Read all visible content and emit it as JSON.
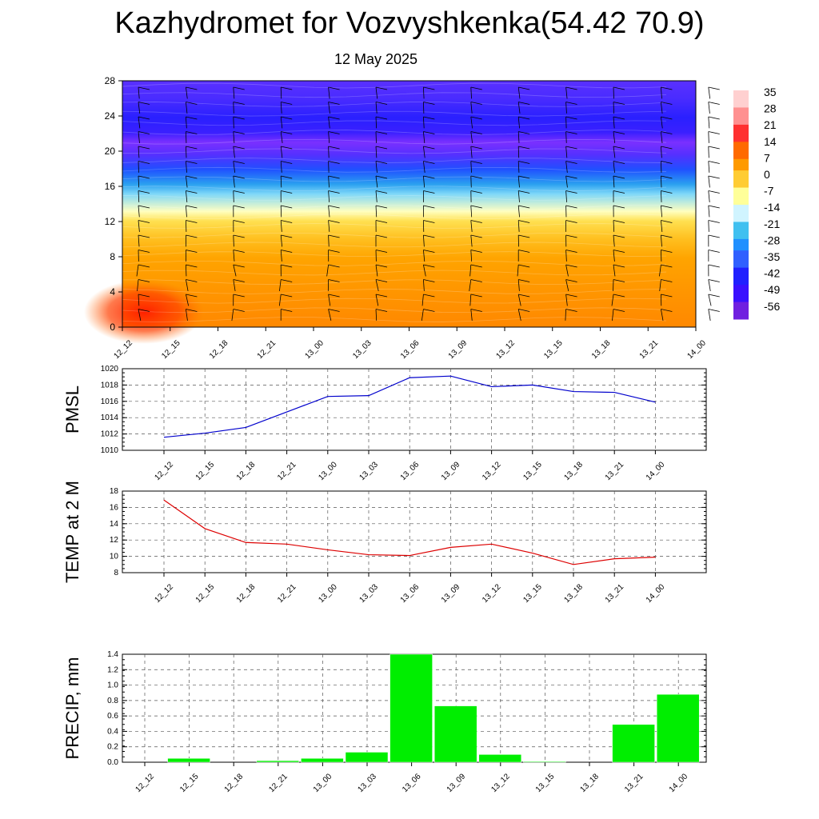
{
  "title": "Kazhydromet for Vozvyshkenka(54.42 70.9)",
  "subtitle": "12 May 2025",
  "x_labels": [
    "12_12",
    "12_15",
    "12_18",
    "12_21",
    "13_00",
    "13_03",
    "13_06",
    "13_09",
    "13_12",
    "13_15",
    "13_18",
    "13_21",
    "14_00"
  ],
  "chart_data": [
    {
      "type": "heatmap",
      "ylim": [
        0,
        28
      ],
      "y_ticks": [
        0,
        4,
        8,
        12,
        16,
        20,
        24,
        28
      ],
      "colorbar": {
        "labels": [
          "35",
          "28",
          "21",
          "14",
          "7",
          "0",
          "-7",
          "-14",
          "-21",
          "-28",
          "-35",
          "-42",
          "-49",
          "-56"
        ],
        "colors": [
          "#ffd0d0",
          "#ff9090",
          "#ff3030",
          "#ff6a00",
          "#ff9a00",
          "#ffcc33",
          "#ffff99",
          "#d0f4ff",
          "#40c0f0",
          "#2090ff",
          "#3060ff",
          "#2020ff",
          "#3a10ff",
          "#7020e0"
        ]
      }
    },
    {
      "type": "line",
      "ylabel": "PMSL",
      "ylim": [
        1010,
        1020
      ],
      "y_ticks": [
        1010,
        1012,
        1014,
        1016,
        1018,
        1020
      ],
      "color": "#0000cc",
      "values": [
        1011.6,
        1012.1,
        1012.8,
        1014.7,
        1016.6,
        1016.7,
        1018.9,
        1019.1,
        1017.8,
        1018.0,
        1017.2,
        1017.1,
        1015.9
      ]
    },
    {
      "type": "line",
      "ylabel": "TEMP at 2 M",
      "ylim": [
        8,
        18
      ],
      "y_ticks": [
        8,
        10,
        12,
        14,
        16,
        18
      ],
      "color": "#dd0000",
      "values": [
        16.9,
        13.4,
        11.7,
        11.5,
        10.8,
        10.2,
        10.1,
        11.1,
        11.5,
        10.4,
        9.0,
        9.7,
        9.9
      ]
    },
    {
      "type": "bar",
      "ylabel": "PRECIP, mm",
      "ylim": [
        0,
        1.4
      ],
      "y_ticks": [
        "0.0",
        "0.2",
        "0.4",
        "0.6",
        "0.8",
        "1.0",
        "1.2",
        "1.4"
      ],
      "color": "#00ee00",
      "values": [
        0,
        0.05,
        0,
        0.02,
        0.05,
        0.13,
        1.4,
        0.73,
        0.1,
        0.01,
        0,
        0.49,
        0.88
      ]
    }
  ]
}
